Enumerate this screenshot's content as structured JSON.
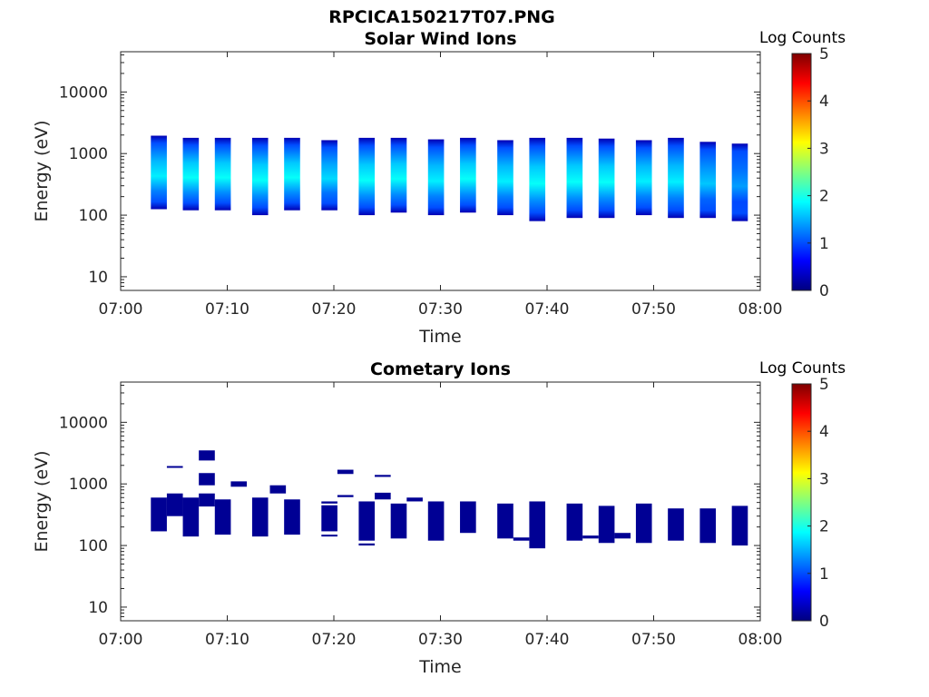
{
  "figure_title": "RPCICA150217T07.PNG",
  "chart_data": [
    {
      "type": "heatmap",
      "title": "Solar Wind Ions",
      "xlabel": "Time",
      "ylabel": "Energy (eV)",
      "x_ticks": [
        "07:00",
        "07:10",
        "07:20",
        "07:30",
        "07:40",
        "07:50",
        "08:00"
      ],
      "xlim": [
        "07:00",
        "08:00"
      ],
      "y_ticks": [
        "10",
        "100",
        "1000",
        "10000"
      ],
      "y_scale": "log",
      "ylim": [
        6,
        45000
      ],
      "colorbar": {
        "label": "Log Counts",
        "range": [
          0,
          5
        ],
        "ticks": [
          "0",
          "1",
          "2",
          "3",
          "4",
          "5"
        ],
        "colormap": "jet"
      },
      "blocks": [
        {
          "t_start": "07:02:50",
          "t_end": "07:04:20",
          "e_low": 125,
          "e_high": 1950,
          "peak_log_counts": 1.8
        },
        {
          "t_start": "07:05:50",
          "t_end": "07:07:20",
          "e_low": 120,
          "e_high": 1800,
          "peak_log_counts": 1.9
        },
        {
          "t_start": "07:08:50",
          "t_end": "07:10:20",
          "e_low": 120,
          "e_high": 1800,
          "peak_log_counts": 1.9
        },
        {
          "t_start": "07:12:20",
          "t_end": "07:13:50",
          "e_low": 100,
          "e_high": 1800,
          "peak_log_counts": 1.9
        },
        {
          "t_start": "07:15:20",
          "t_end": "07:16:50",
          "e_low": 120,
          "e_high": 1800,
          "peak_log_counts": 1.9
        },
        {
          "t_start": "07:18:50",
          "t_end": "07:20:20",
          "e_low": 120,
          "e_high": 1650,
          "peak_log_counts": 1.7
        },
        {
          "t_start": "07:22:20",
          "t_end": "07:23:50",
          "e_low": 100,
          "e_high": 1800,
          "peak_log_counts": 1.9
        },
        {
          "t_start": "07:25:20",
          "t_end": "07:26:50",
          "e_low": 110,
          "e_high": 1800,
          "peak_log_counts": 1.9
        },
        {
          "t_start": "07:28:50",
          "t_end": "07:30:20",
          "e_low": 100,
          "e_high": 1700,
          "peak_log_counts": 1.8
        },
        {
          "t_start": "07:31:50",
          "t_end": "07:33:20",
          "e_low": 110,
          "e_high": 1800,
          "peak_log_counts": 1.9
        },
        {
          "t_start": "07:35:20",
          "t_end": "07:36:50",
          "e_low": 100,
          "e_high": 1650,
          "peak_log_counts": 1.8
        },
        {
          "t_start": "07:38:20",
          "t_end": "07:39:50",
          "e_low": 80,
          "e_high": 1800,
          "peak_log_counts": 1.9
        },
        {
          "t_start": "07:41:50",
          "t_end": "07:43:20",
          "e_low": 90,
          "e_high": 1800,
          "peak_log_counts": 1.9
        },
        {
          "t_start": "07:44:50",
          "t_end": "07:46:20",
          "e_low": 90,
          "e_high": 1750,
          "peak_log_counts": 1.9
        },
        {
          "t_start": "07:48:20",
          "t_end": "07:49:50",
          "e_low": 100,
          "e_high": 1650,
          "peak_log_counts": 1.8
        },
        {
          "t_start": "07:51:20",
          "t_end": "07:52:50",
          "e_low": 90,
          "e_high": 1800,
          "peak_log_counts": 1.8
        },
        {
          "t_start": "07:54:20",
          "t_end": "07:55:50",
          "e_low": 90,
          "e_high": 1550,
          "peak_log_counts": 1.6
        },
        {
          "t_start": "07:57:20",
          "t_end": "07:58:50",
          "e_low": 80,
          "e_high": 1450,
          "peak_log_counts": 1.4
        }
      ]
    },
    {
      "type": "heatmap",
      "title": "Cometary Ions",
      "xlabel": "Time",
      "ylabel": "Energy (eV)",
      "x_ticks": [
        "07:00",
        "07:10",
        "07:20",
        "07:30",
        "07:40",
        "07:50",
        "08:00"
      ],
      "xlim": [
        "07:00",
        "08:00"
      ],
      "y_ticks": [
        "10",
        "100",
        "1000",
        "10000"
      ],
      "y_scale": "log",
      "ylim": [
        6,
        45000
      ],
      "colorbar": {
        "label": "Log Counts",
        "range": [
          0,
          5
        ],
        "ticks": [
          "0",
          "1",
          "2",
          "3",
          "4",
          "5"
        ],
        "colormap": "jet"
      },
      "blocks": [
        {
          "t_start": "07:02:50",
          "t_end": "07:04:20",
          "e_low": 170,
          "e_high": 600,
          "peak_log_counts": 0
        },
        {
          "t_start": "07:04:20",
          "t_end": "07:05:50",
          "e_low": 300,
          "e_high": 700,
          "peak_log_counts": 0
        },
        {
          "t_start": "07:04:20",
          "t_end": "07:05:50",
          "e_low": 1850,
          "e_high": 1950,
          "peak_log_counts": 0
        },
        {
          "t_start": "07:05:50",
          "t_end": "07:07:20",
          "e_low": 140,
          "e_high": 600,
          "peak_log_counts": 0
        },
        {
          "t_start": "07:07:20",
          "t_end": "07:08:50",
          "e_low": 430,
          "e_high": 700,
          "peak_log_counts": 0
        },
        {
          "t_start": "07:07:20",
          "t_end": "07:08:50",
          "e_low": 950,
          "e_high": 1500,
          "peak_log_counts": 0
        },
        {
          "t_start": "07:07:20",
          "t_end": "07:08:50",
          "e_low": 2400,
          "e_high": 3500,
          "peak_log_counts": 0
        },
        {
          "t_start": "07:08:50",
          "t_end": "07:10:20",
          "e_low": 150,
          "e_high": 560,
          "peak_log_counts": 0
        },
        {
          "t_start": "07:10:20",
          "t_end": "07:11:50",
          "e_low": 900,
          "e_high": 1100,
          "peak_log_counts": 0
        },
        {
          "t_start": "07:12:20",
          "t_end": "07:13:50",
          "e_low": 140,
          "e_high": 600,
          "peak_log_counts": 0
        },
        {
          "t_start": "07:14:00",
          "t_end": "07:15:30",
          "e_low": 700,
          "e_high": 950,
          "peak_log_counts": 0
        },
        {
          "t_start": "07:15:20",
          "t_end": "07:16:50",
          "e_low": 150,
          "e_high": 560,
          "peak_log_counts": 0
        },
        {
          "t_start": "07:18:50",
          "t_end": "07:20:20",
          "e_low": 170,
          "e_high": 450,
          "peak_log_counts": 0
        },
        {
          "t_start": "07:18:50",
          "t_end": "07:20:20",
          "e_low": 480,
          "e_high": 520,
          "peak_log_counts": 0
        },
        {
          "t_start": "07:18:50",
          "t_end": "07:20:20",
          "e_low": 140,
          "e_high": 150,
          "peak_log_counts": 0
        },
        {
          "t_start": "07:20:20",
          "t_end": "07:21:50",
          "e_low": 1450,
          "e_high": 1700,
          "peak_log_counts": 0
        },
        {
          "t_start": "07:20:20",
          "t_end": "07:21:50",
          "e_low": 610,
          "e_high": 660,
          "peak_log_counts": 0
        },
        {
          "t_start": "07:22:20",
          "t_end": "07:23:50",
          "e_low": 120,
          "e_high": 520,
          "peak_log_counts": 0
        },
        {
          "t_start": "07:22:20",
          "t_end": "07:23:50",
          "e_low": 100,
          "e_high": 108,
          "peak_log_counts": 0
        },
        {
          "t_start": "07:23:50",
          "t_end": "07:25:20",
          "e_low": 560,
          "e_high": 720,
          "peak_log_counts": 0
        },
        {
          "t_start": "07:23:50",
          "t_end": "07:25:20",
          "e_low": 1300,
          "e_high": 1400,
          "peak_log_counts": 0
        },
        {
          "t_start": "07:25:20",
          "t_end": "07:26:50",
          "e_low": 130,
          "e_high": 480,
          "peak_log_counts": 0
        },
        {
          "t_start": "07:26:50",
          "t_end": "07:28:20",
          "e_low": 520,
          "e_high": 600,
          "peak_log_counts": 0
        },
        {
          "t_start": "07:28:50",
          "t_end": "07:30:20",
          "e_low": 120,
          "e_high": 520,
          "peak_log_counts": 0
        },
        {
          "t_start": "07:31:50",
          "t_end": "07:33:20",
          "e_low": 160,
          "e_high": 520,
          "peak_log_counts": 0
        },
        {
          "t_start": "07:35:20",
          "t_end": "07:36:50",
          "e_low": 130,
          "e_high": 480,
          "peak_log_counts": 0
        },
        {
          "t_start": "07:36:50",
          "t_end": "07:38:20",
          "e_low": 120,
          "e_high": 135,
          "peak_log_counts": 0
        },
        {
          "t_start": "07:38:20",
          "t_end": "07:39:50",
          "e_low": 90,
          "e_high": 520,
          "peak_log_counts": 0
        },
        {
          "t_start": "07:41:50",
          "t_end": "07:43:20",
          "e_low": 120,
          "e_high": 480,
          "peak_log_counts": 0
        },
        {
          "t_start": "07:43:20",
          "t_end": "07:44:50",
          "e_low": 130,
          "e_high": 145,
          "peak_log_counts": 0
        },
        {
          "t_start": "07:44:50",
          "t_end": "07:46:20",
          "e_low": 110,
          "e_high": 440,
          "peak_log_counts": 0
        },
        {
          "t_start": "07:46:20",
          "t_end": "07:47:50",
          "e_low": 130,
          "e_high": 160,
          "peak_log_counts": 0
        },
        {
          "t_start": "07:48:20",
          "t_end": "07:49:50",
          "e_low": 110,
          "e_high": 480,
          "peak_log_counts": 0
        },
        {
          "t_start": "07:51:20",
          "t_end": "07:52:50",
          "e_low": 120,
          "e_high": 400,
          "peak_log_counts": 0
        },
        {
          "t_start": "07:54:20",
          "t_end": "07:55:50",
          "e_low": 110,
          "e_high": 400,
          "peak_log_counts": 0
        },
        {
          "t_start": "07:57:20",
          "t_end": "07:58:50",
          "e_low": 100,
          "e_high": 440,
          "peak_log_counts": 0
        }
      ]
    }
  ]
}
